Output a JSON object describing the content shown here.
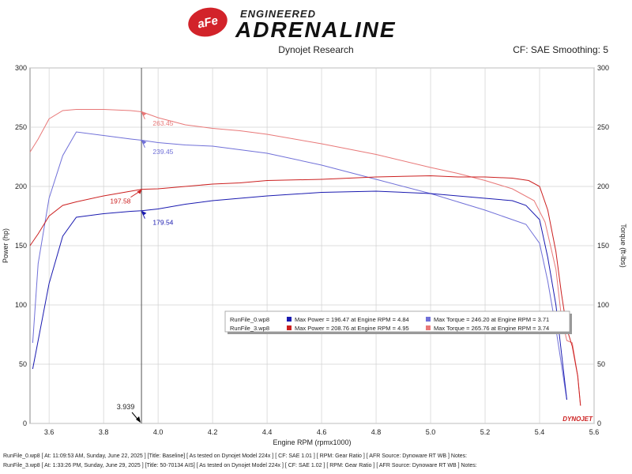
{
  "header": {
    "brand_badge": "aFe",
    "brand_sub": "ENGINEERED",
    "brand_main": "ADRENALINE",
    "subtitle": "Dynojet Research",
    "cf_smoothing": "CF: SAE Smoothing: 5"
  },
  "colors": {
    "run0_power": "#1a1ab0",
    "run0_torque": "#7070d8",
    "run3_power": "#cc2020",
    "run3_torque": "#e87878",
    "grid": "#d0d0d0",
    "cursor": "#555555"
  },
  "chart_data": {
    "type": "line",
    "xlabel": "Engine RPM (rpmx1000)",
    "ylabel": "Power (hp)",
    "y2label": "Torque (ft-lbs)",
    "xlim": [
      3.53,
      5.6
    ],
    "ylim": [
      0,
      300
    ],
    "x_ticks": [
      "3.6",
      "3.8",
      "4.0",
      "4.2",
      "4.4",
      "4.6",
      "4.8",
      "5.0",
      "5.2",
      "5.4",
      "5.6"
    ],
    "y_ticks": [
      "0",
      "50",
      "100",
      "150",
      "200",
      "250",
      "300"
    ],
    "cursor_x": 3.939,
    "cursor_label": "3.939",
    "series": [
      {
        "key": "run3_torque",
        "x": [
          3.53,
          3.56,
          3.6,
          3.65,
          3.7,
          3.8,
          3.9,
          3.94,
          4.0,
          4.1,
          4.2,
          4.3,
          4.4,
          4.6,
          4.8,
          5.0,
          5.1,
          5.2,
          5.3,
          5.38,
          5.42,
          5.46,
          5.48,
          5.5,
          5.52,
          5.54,
          5.55
        ],
        "y": [
          229,
          240,
          257,
          264,
          265,
          265,
          264,
          263,
          258,
          252,
          249,
          247,
          244,
          236,
          227,
          216,
          211,
          205,
          198,
          188,
          170,
          130,
          90,
          70,
          68,
          40,
          15
        ]
      },
      {
        "key": "run0_torque",
        "x": [
          3.54,
          3.56,
          3.6,
          3.65,
          3.7,
          3.8,
          3.9,
          3.94,
          4.0,
          4.1,
          4.2,
          4.3,
          4.4,
          4.6,
          4.8,
          5.0,
          5.1,
          5.2,
          5.3,
          5.35,
          5.4,
          5.43,
          5.46,
          5.48,
          5.5
        ],
        "y": [
          68,
          135,
          190,
          226,
          246,
          243,
          240,
          239,
          237,
          235,
          234,
          231,
          228,
          218,
          206,
          194,
          187,
          180,
          172,
          168,
          152,
          120,
          80,
          50,
          20
        ]
      },
      {
        "key": "run3_power",
        "x": [
          3.53,
          3.56,
          3.6,
          3.65,
          3.7,
          3.8,
          3.9,
          3.94,
          4.0,
          4.1,
          4.2,
          4.3,
          4.4,
          4.6,
          4.8,
          5.0,
          5.1,
          5.2,
          5.3,
          5.36,
          5.4,
          5.43,
          5.46,
          5.48,
          5.5,
          5.52,
          5.54,
          5.55
        ],
        "y": [
          150,
          160,
          175,
          184,
          187,
          192,
          196,
          197.58,
          198,
          200,
          202,
          203,
          205,
          206,
          208,
          209,
          208,
          208,
          207,
          205,
          200,
          180,
          145,
          110,
          80,
          65,
          40,
          15
        ]
      },
      {
        "key": "run0_power",
        "x": [
          3.54,
          3.56,
          3.6,
          3.65,
          3.7,
          3.8,
          3.9,
          3.94,
          4.0,
          4.1,
          4.2,
          4.3,
          4.4,
          4.6,
          4.8,
          5.0,
          5.1,
          5.2,
          5.3,
          5.35,
          5.4,
          5.43,
          5.46,
          5.48,
          5.5
        ],
        "y": [
          46,
          70,
          118,
          158,
          174,
          177,
          179,
          179.54,
          181,
          185,
          188,
          190,
          192,
          195,
          196,
          194,
          192,
          190,
          188,
          184,
          172,
          140,
          100,
          60,
          20
        ]
      }
    ],
    "annotations": [
      {
        "key": "run3_torque",
        "x": 3.94,
        "y": 263.45,
        "label": "263.45",
        "pos": "right-below"
      },
      {
        "key": "run0_torque",
        "x": 3.94,
        "y": 239.45,
        "label": "239.45",
        "pos": "right-below"
      },
      {
        "key": "run3_power",
        "x": 3.94,
        "y": 197.58,
        "label": "197.58",
        "pos": "left-below"
      },
      {
        "key": "run0_power",
        "x": 3.94,
        "y": 179.54,
        "label": "179.54",
        "pos": "right-below"
      }
    ],
    "legend": {
      "placement": "center-right",
      "rows": [
        {
          "run": "RunFile_0.wp8",
          "power_key": "run0_power",
          "power": "Max Power = 196.47 at Engine RPM = 4.84",
          "torque_key": "run0_torque",
          "torque": "Max Torque = 246.20 at Engine RPM = 3.71"
        },
        {
          "run": "RunFile_3.wp8",
          "power_key": "run3_power",
          "power": "Max Power = 208.76 at Engine RPM = 4.95",
          "torque_key": "run3_torque",
          "torque": "Max Torque = 265.76 at Engine RPM = 3.74"
        }
      ]
    },
    "watermark": "DYNOJET"
  },
  "footer": {
    "line1": "RunFile_0.wp8 [ At: 11:09:53 AM, Sunday, June 22, 2025 ] [Title: Baseline]  [ As tested on Dynojet Model 224x ] [ CF: SAE 1.01 ] [ RPM: Gear Ratio ] [ AFR Source: Dynoware RT WB ] Notes:",
    "line2": "RunFile_3.wp8 [ At: 1:33:26 PM, Sunday, June 29, 2025 ] [Title: 50-70134 AIS]  [ As tested on Dynojet Model 224x ] [ CF: SAE 1.02 ] [ RPM: Gear Ratio ] [ AFR Source: Dynoware RT WB ] Notes:"
  }
}
